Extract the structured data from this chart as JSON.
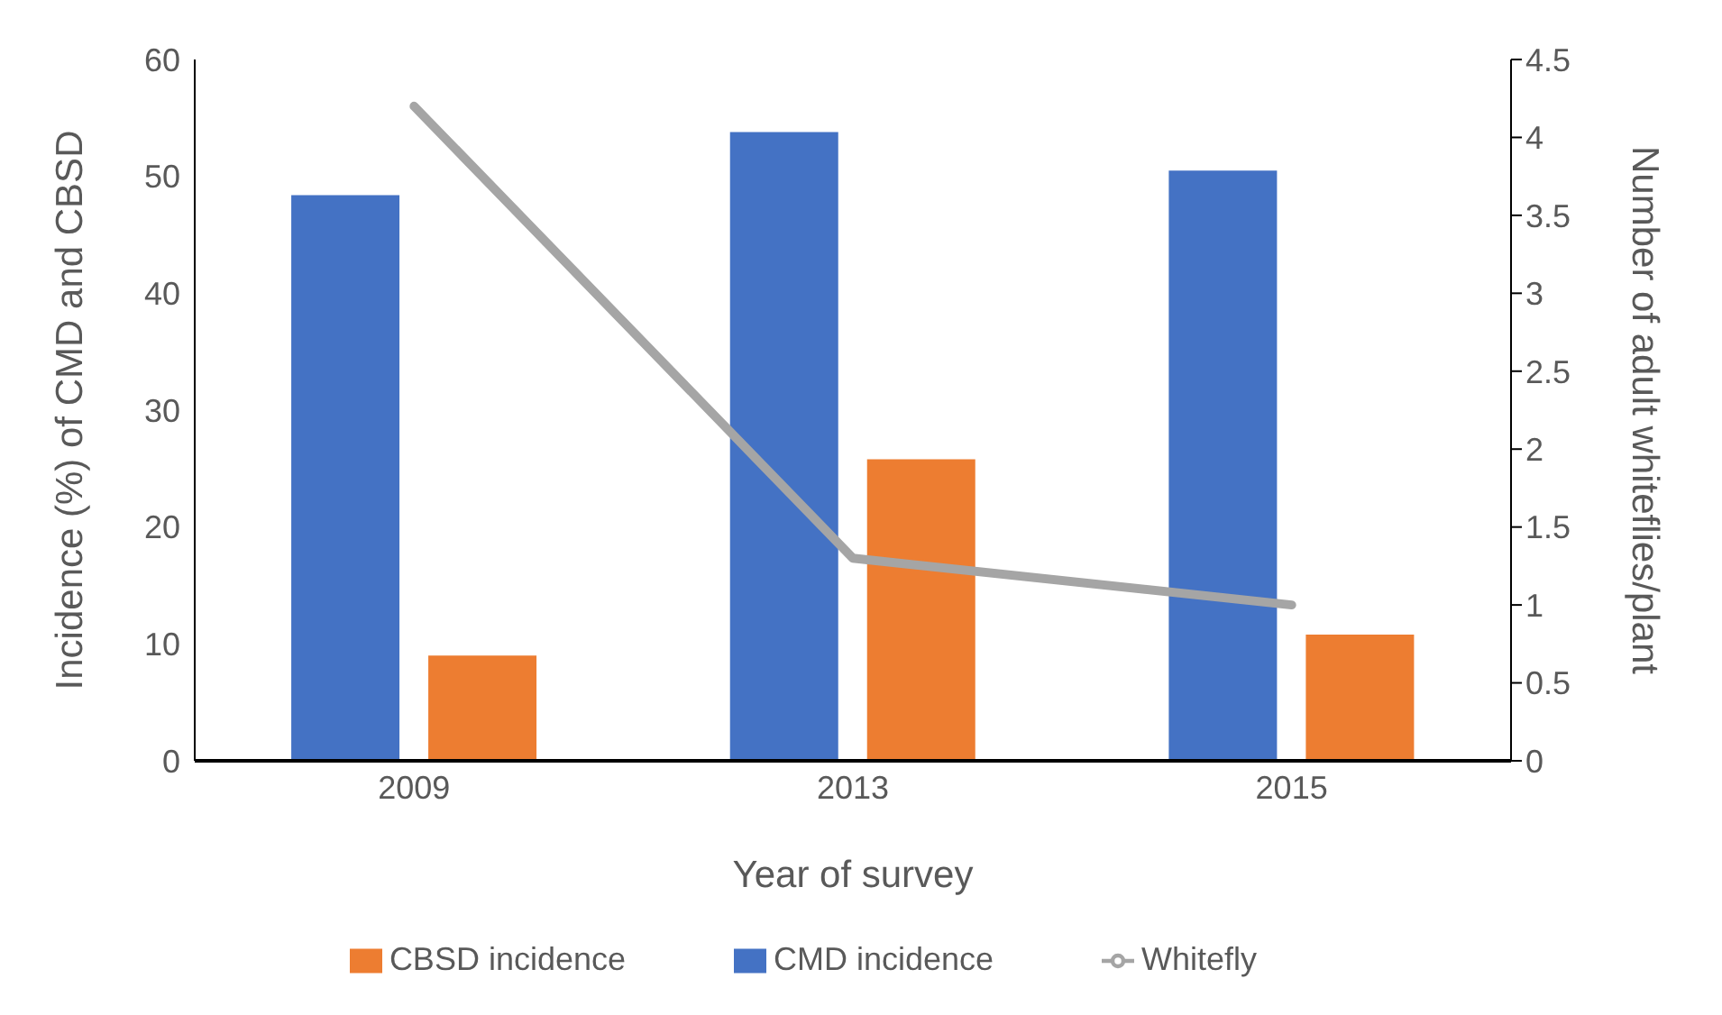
{
  "chart_data": {
    "type": "bar",
    "xlabel": "Year of survey",
    "ylabel": "Incidence (%) of CMD and CBSD",
    "y2label": "Number of adult whiteflies/plant",
    "categories": [
      "2009",
      "2013",
      "2015"
    ],
    "series": [
      {
        "name": "CMD incidence",
        "color": "#4472c4",
        "values": [
          48.4,
          53.8,
          50.5
        ]
      },
      {
        "name": "CBSD incidence",
        "color": "#ed7d31",
        "values": [
          9.0,
          25.8,
          10.8
        ]
      },
      {
        "name": "Whitefly",
        "type": "line",
        "axis": "y2",
        "color": "#a5a5a5",
        "values": [
          4.2,
          1.3,
          1.0
        ]
      }
    ],
    "ylim": [
      0,
      60
    ],
    "yticks": [
      0,
      10,
      20,
      30,
      40,
      50,
      60
    ],
    "y2lim": [
      0,
      4.5
    ],
    "y2ticks": [
      0,
      0.5,
      1,
      1.5,
      2,
      2.5,
      3,
      3.5,
      4,
      4.5
    ],
    "grid": false,
    "legend": "bottom",
    "marker": "none",
    "line_style": "solid"
  }
}
